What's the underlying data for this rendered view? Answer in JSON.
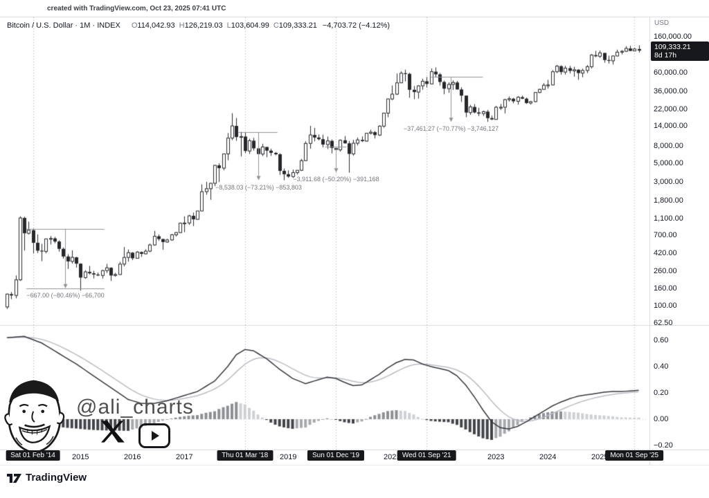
{
  "meta": {
    "created_note": "created with TradingView.com, Oct 23, 2025 07:41 UTC"
  },
  "header": {
    "symbol_line": "Bitcoin / U.S. Dollar · 1M · INDEX",
    "o_label": "O",
    "open": "114,042.93",
    "h_label": "H",
    "high": "126,219.03",
    "l_label": "L",
    "low": "103,604.99",
    "c_label": "C",
    "close": "109,333.21",
    "change": "−4,703.72 (−4.12%)"
  },
  "price_axis": {
    "currency": "USD",
    "last_price_label": "109,333.21",
    "countdown": "8d 17h",
    "ticks": [
      {
        "label": "160,000.00",
        "value": 160000
      },
      {
        "label": "60,000.00",
        "value": 60000
      },
      {
        "label": "36,000.00",
        "value": 36000
      },
      {
        "label": "22,000.00",
        "value": 22000
      },
      {
        "label": "14,000.00",
        "value": 14000
      },
      {
        "label": "8,000.00",
        "value": 8000
      },
      {
        "label": "5,000.00",
        "value": 5000
      },
      {
        "label": "3,000.00",
        "value": 3000
      },
      {
        "label": "1,800.00",
        "value": 1800
      },
      {
        "label": "1,100.00",
        "value": 1100
      },
      {
        "label": "700.00",
        "value": 700
      },
      {
        "label": "420.00",
        "value": 420
      },
      {
        "label": "260.00",
        "value": 260
      },
      {
        "label": "160.00",
        "value": 160
      },
      {
        "label": "100.00",
        "value": 100
      },
      {
        "label": "62.50",
        "value": 62.5
      }
    ]
  },
  "time_axis": {
    "years": [
      {
        "label": "2015",
        "i": 17
      },
      {
        "label": "2016",
        "i": 29
      },
      {
        "label": "2017",
        "i": 41
      },
      {
        "label": "2019",
        "i": 65
      },
      {
        "label": "2021",
        "i": 89
      },
      {
        "label": "2023",
        "i": 113
      },
      {
        "label": "2024",
        "i": 125
      },
      {
        "label": "2025",
        "i": 137
      }
    ],
    "badges": [
      {
        "label": "Sat 01 Feb '14",
        "i": 6
      },
      {
        "label": "Thu 01 Mar '18",
        "i": 55
      },
      {
        "label": "Sun 01 Dec '19",
        "i": 76
      },
      {
        "label": "Wed 01 Sep '21",
        "i": 97
      },
      {
        "label": "Mon 01 Sep '25",
        "i": 145
      }
    ]
  },
  "annotations": [
    {
      "label": "−667.00 (−80.46%)  −66,700",
      "price_from": 829,
      "price_to": 162,
      "i_from": 4.5,
      "i_to": 22.5,
      "i_arrow": 13.5,
      "bottom_line": true
    },
    {
      "label": "−8,538.03 (−73.21%)  −853,803",
      "price_from": 11663,
      "price_to": 3125,
      "i_from": 53.5,
      "i_to": 62.5,
      "i_arrow": 58,
      "bottom_line": false
    },
    {
      "label": "−3,911.68 (−50.20%)  −391,168",
      "price_from": 7792,
      "price_to": 3880,
      "i_from": 73.5,
      "i_to": 78.5,
      "i_arrow": 76,
      "bottom_line": false
    },
    {
      "label": "−37,461.27 (−70.77%)  −3,746,127",
      "price_from": 52934,
      "price_to": 15473,
      "i_from": 98,
      "i_to": 110,
      "i_arrow": 102.5,
      "bottom_line": false
    }
  ],
  "watermark": {
    "handle": "@ali_charts"
  },
  "footer": {
    "brand": "TradingView"
  },
  "chart_data": {
    "type": "candlestick",
    "symbol": "Bitcoin / U.S. Dollar",
    "interval": "1M",
    "source": "INDEX",
    "scale": "log",
    "start": "2013-08",
    "gridline_indices": [
      6,
      55,
      76,
      97,
      145
    ],
    "months": [
      [
        97,
        140,
        92,
        138
      ],
      [
        138,
        146,
        120,
        133
      ],
      [
        133,
        230,
        123,
        204
      ],
      [
        204,
        1163,
        198,
        1113
      ],
      [
        1113,
        1150,
        455,
        731
      ],
      [
        731,
        1005,
        705,
        795
      ],
      [
        795,
        830,
        420,
        563
      ],
      [
        563,
        709,
        425,
        454
      ],
      [
        454,
        548,
        340,
        444
      ],
      [
        444,
        632,
        422,
        627
      ],
      [
        627,
        678,
        538,
        635
      ],
      [
        635,
        662,
        555,
        583
      ],
      [
        583,
        601,
        442,
        477
      ],
      [
        477,
        495,
        365,
        387
      ],
      [
        387,
        412,
        275,
        338
      ],
      [
        338,
        458,
        318,
        378
      ],
      [
        378,
        384,
        285,
        318
      ],
      [
        318,
        321,
        152,
        217
      ],
      [
        217,
        265,
        210,
        254
      ],
      [
        254,
        299,
        236,
        244
      ],
      [
        244,
        261,
        212,
        236
      ],
      [
        236,
        249,
        226,
        230
      ],
      [
        230,
        268,
        211,
        263
      ],
      [
        263,
        316,
        246,
        284
      ],
      [
        284,
        288,
        198,
        230
      ],
      [
        230,
        247,
        223,
        236
      ],
      [
        236,
        334,
        234,
        314
      ],
      [
        314,
        502,
        295,
        377
      ],
      [
        377,
        469,
        336,
        430
      ],
      [
        430,
        436,
        350,
        368
      ],
      [
        368,
        448,
        365,
        437
      ],
      [
        437,
        444,
        383,
        416
      ],
      [
        416,
        470,
        410,
        448
      ],
      [
        448,
        551,
        436,
        531
      ],
      [
        531,
        781,
        519,
        673
      ],
      [
        673,
        706,
        593,
        624
      ],
      [
        624,
        630,
        465,
        575
      ],
      [
        575,
        629,
        564,
        609
      ],
      [
        609,
        719,
        595,
        700
      ],
      [
        700,
        755,
        670,
        745
      ],
      [
        745,
        982,
        739,
        963
      ],
      [
        963,
        1162,
        751,
        970
      ],
      [
        970,
        1212,
        918,
        1179
      ],
      [
        1179,
        1290,
        891,
        1071
      ],
      [
        1071,
        1352,
        1061,
        1347
      ],
      [
        1347,
        2791,
        1337,
        2286
      ],
      [
        2286,
        2989,
        2100,
        2480
      ],
      [
        2480,
        2921,
        1830,
        2875
      ],
      [
        2875,
        4765,
        2653,
        4703
      ],
      [
        4703,
        4980,
        2972,
        4360
      ],
      [
        4360,
        6498,
        4110,
        6440
      ],
      [
        6440,
        11417,
        5400,
        9916
      ],
      [
        9916,
        19666,
        9380,
        13860
      ],
      [
        13860,
        17234,
        9222,
        10221
      ],
      [
        10221,
        11786,
        5992,
        10360
      ],
      [
        10360,
        11663,
        6600,
        6973
      ],
      [
        6973,
        9760,
        6426,
        9245
      ],
      [
        9245,
        9990,
        7041,
        7494
      ],
      [
        7494,
        7754,
        5777,
        6404
      ],
      [
        6404,
        8506,
        6070,
        7780
      ],
      [
        7780,
        7796,
        5880,
        7037
      ],
      [
        7037,
        7412,
        6100,
        6625
      ],
      [
        6625,
        6780,
        6188,
        6371
      ],
      [
        6371,
        6557,
        3617,
        4041
      ],
      [
        4041,
        4309,
        3125,
        3689
      ],
      [
        3689,
        4097,
        3349,
        3457
      ],
      [
        3457,
        4190,
        3331,
        3854
      ],
      [
        3854,
        4140,
        3666,
        4105
      ],
      [
        4105,
        5604,
        4029,
        5350
      ],
      [
        5350,
        9092,
        5280,
        8574
      ],
      [
        8574,
        13880,
        7432,
        10817
      ],
      [
        10817,
        13129,
        9077,
        10085
      ],
      [
        10085,
        10950,
        9321,
        9630
      ],
      [
        9630,
        10898,
        7700,
        8308
      ],
      [
        8308,
        10350,
        7361,
        9199
      ],
      [
        9199,
        9562,
        6530,
        7569
      ],
      [
        7569,
        7757,
        6430,
        7193
      ],
      [
        7193,
        9570,
        6850,
        9350
      ],
      [
        9350,
        10500,
        8521,
        8599
      ],
      [
        8599,
        9178,
        3850,
        6438
      ],
      [
        6438,
        9460,
        6140,
        8629
      ],
      [
        8629,
        10060,
        8112,
        9454
      ],
      [
        9454,
        10380,
        8910,
        9137
      ],
      [
        9137,
        11444,
        9001,
        11323
      ],
      [
        11323,
        12484,
        10995,
        11680
      ],
      [
        11680,
        12050,
        9819,
        10784
      ],
      [
        10784,
        14100,
        10517,
        13781
      ],
      [
        13781,
        19863,
        13195,
        19695
      ],
      [
        19695,
        29300,
        17572,
        29001
      ],
      [
        29001,
        41950,
        28130,
        33114
      ],
      [
        33114,
        58352,
        32322,
        45137
      ],
      [
        45137,
        61788,
        44950,
        58763
      ],
      [
        58763,
        64863,
        46930,
        57750
      ],
      [
        57750,
        59500,
        30000,
        37298
      ],
      [
        37298,
        41330,
        28800,
        35041
      ],
      [
        35041,
        42235,
        29296,
        41553
      ],
      [
        41553,
        50500,
        37332,
        47130
      ],
      [
        47130,
        52920,
        39600,
        43790
      ],
      [
        43790,
        66930,
        43288,
        61318
      ],
      [
        61318,
        69000,
        53256,
        56950
      ],
      [
        56950,
        59100,
        42000,
        46211
      ],
      [
        46211,
        47990,
        32950,
        38483
      ],
      [
        38483,
        45821,
        34322,
        43193
      ],
      [
        43193,
        48240,
        37155,
        45539
      ],
      [
        45539,
        47448,
        37585,
        37630
      ],
      [
        37630,
        40022,
        26700,
        31792
      ],
      [
        31792,
        31982,
        17593,
        19985
      ],
      [
        19985,
        24668,
        18781,
        23307
      ],
      [
        23307,
        25211,
        19520,
        20049
      ],
      [
        20049,
        22799,
        18125,
        19423
      ],
      [
        19423,
        21085,
        18190,
        20495
      ],
      [
        20495,
        21480,
        15476,
        17168
      ],
      [
        17168,
        18387,
        16256,
        16547
      ],
      [
        16547,
        23960,
        16488,
        23125
      ],
      [
        23125,
        25250,
        21428,
        23147
      ],
      [
        23147,
        29184,
        19549,
        28478
      ],
      [
        28478,
        31050,
        26942,
        29233
      ],
      [
        29233,
        29852,
        25811,
        27219
      ],
      [
        27219,
        31389,
        24797,
        30477
      ],
      [
        30477,
        31804,
        28859,
        29230
      ],
      [
        29230,
        30177,
        25350,
        25932
      ],
      [
        25932,
        27483,
        24901,
        26967
      ],
      [
        26967,
        34717,
        26539,
        34656
      ],
      [
        34656,
        38414,
        34100,
        37718
      ],
      [
        37718,
        44700,
        37615,
        42265
      ],
      [
        42265,
        48969,
        38501,
        42580
      ],
      [
        42580,
        63933,
        42190,
        61198
      ],
      [
        61198,
        73777,
        59005,
        71333
      ],
      [
        71333,
        72797,
        56500,
        60636
      ],
      [
        60636,
        71946,
        56552,
        67491
      ],
      [
        67491,
        71997,
        58402,
        62678
      ],
      [
        62678,
        69987,
        53499,
        64619
      ],
      [
        64619,
        65593,
        49050,
        58969
      ],
      [
        58969,
        66500,
        52546,
        63329
      ],
      [
        63329,
        73620,
        58895,
        70215
      ],
      [
        70215,
        99655,
        66835,
        96449
      ],
      [
        96449,
        108364,
        91530,
        93429
      ],
      [
        93429,
        109356,
        89164,
        102405
      ],
      [
        102405,
        102800,
        78258,
        84349
      ],
      [
        84349,
        95000,
        76606,
        82548
      ],
      [
        82548,
        95768,
        74436,
        94207
      ],
      [
        94207,
        111980,
        93351,
        104598
      ],
      [
        104598,
        110531,
        98240,
        107135
      ],
      [
        107135,
        123231,
        105111,
        115758
      ],
      [
        115758,
        124474,
        107271,
        108236
      ],
      [
        108236,
        117999,
        107255,
        114042
      ],
      [
        114042.93,
        126219.03,
        103604.99,
        109333.21
      ]
    ],
    "indicator": {
      "type": "macd-style oscillator",
      "ticks": [
        {
          "label": "0.60",
          "value": 0.6
        },
        {
          "label": "0.40",
          "value": 0.4
        },
        {
          "label": "0.20",
          "value": 0.2
        },
        {
          "label": "0.00",
          "value": 0.0
        },
        {
          "label": "−0.20",
          "value": -0.2
        }
      ],
      "signal_period": 9,
      "macd_keypoints": [
        [
          0,
          0.62
        ],
        [
          4,
          0.63
        ],
        [
          8,
          0.58
        ],
        [
          12,
          0.5
        ],
        [
          16,
          0.42
        ],
        [
          20,
          0.33
        ],
        [
          24,
          0.24
        ],
        [
          28,
          0.15
        ],
        [
          31,
          0.12
        ],
        [
          34,
          0.12
        ],
        [
          37,
          0.14
        ],
        [
          40,
          0.17
        ],
        [
          44,
          0.21
        ],
        [
          48,
          0.29
        ],
        [
          51,
          0.4
        ],
        [
          53,
          0.49
        ],
        [
          55,
          0.53
        ],
        [
          57,
          0.52
        ],
        [
          60,
          0.46
        ],
        [
          63,
          0.38
        ],
        [
          66,
          0.31
        ],
        [
          69,
          0.27
        ],
        [
          72,
          0.3
        ],
        [
          74,
          0.32
        ],
        [
          76,
          0.31
        ],
        [
          78,
          0.28
        ],
        [
          80,
          0.255
        ],
        [
          82,
          0.26
        ],
        [
          84,
          0.3
        ],
        [
          86,
          0.34
        ],
        [
          88,
          0.39
        ],
        [
          90,
          0.43
        ],
        [
          92,
          0.455
        ],
        [
          94,
          0.45
        ],
        [
          96,
          0.42
        ],
        [
          98,
          0.4
        ],
        [
          100,
          0.385
        ],
        [
          102,
          0.37
        ],
        [
          104,
          0.33
        ],
        [
          106,
          0.26
        ],
        [
          108,
          0.17
        ],
        [
          110,
          0.07
        ],
        [
          112,
          -0.02
        ],
        [
          114,
          -0.065
        ],
        [
          116,
          -0.075
        ],
        [
          118,
          -0.055
        ],
        [
          120,
          -0.02
        ],
        [
          122,
          0.02
        ],
        [
          124,
          0.06
        ],
        [
          126,
          0.1
        ],
        [
          128,
          0.13
        ],
        [
          130,
          0.155
        ],
        [
          132,
          0.175
        ],
        [
          134,
          0.185
        ],
        [
          136,
          0.195
        ],
        [
          138,
          0.205
        ],
        [
          140,
          0.21
        ],
        [
          142,
          0.21
        ],
        [
          144,
          0.215
        ],
        [
          146,
          0.22
        ]
      ]
    }
  }
}
